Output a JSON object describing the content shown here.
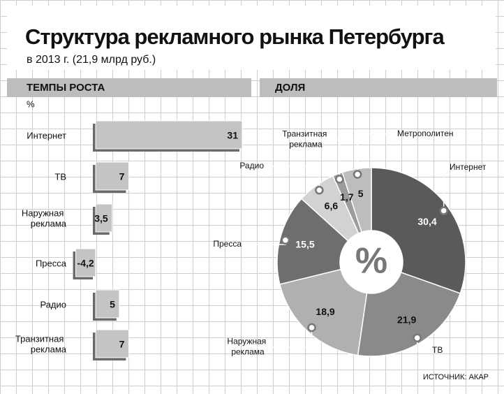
{
  "header": {
    "title": "Структура рекламного рынка Петербурга",
    "subtitle": "в 2013 г. (21,9 млрд руб.)"
  },
  "source": "ИСТОЧНИК: АКАР",
  "chart_data": [
    {
      "type": "hbar",
      "title": "ТЕМПЫ РОСТА",
      "axis_label": "%",
      "categories": [
        "Интернет",
        "ТВ",
        "Наружная реклама",
        "Пресса",
        "Радио",
        "Транзитная реклама"
      ],
      "values": [
        31,
        7,
        3.5,
        -4.2,
        5,
        7
      ],
      "value_labels": [
        "31",
        "7",
        "3,5",
        "-4,2",
        "5",
        "7"
      ],
      "color": "#c4c4c4"
    },
    {
      "type": "donut",
      "title": "ДОЛЯ",
      "center_label": "%",
      "categories": [
        "Интернет",
        "ТВ",
        "Наружная реклама",
        "Пресса",
        "Радио",
        "Транзитная реклама",
        "Метрополитен"
      ],
      "values": [
        30.4,
        21.9,
        18.9,
        15.5,
        6.6,
        1.7,
        5
      ],
      "value_labels": [
        "30,4",
        "21,9",
        "18,9",
        "15,5",
        "6,6",
        "1,7",
        "5"
      ],
      "colors": [
        "#5a5a5a",
        "#8a8a8a",
        "#b0b0b0",
        "#6e6e6e",
        "#d2d2d2",
        "#9c9c9c",
        "#bdbdbd"
      ]
    }
  ]
}
